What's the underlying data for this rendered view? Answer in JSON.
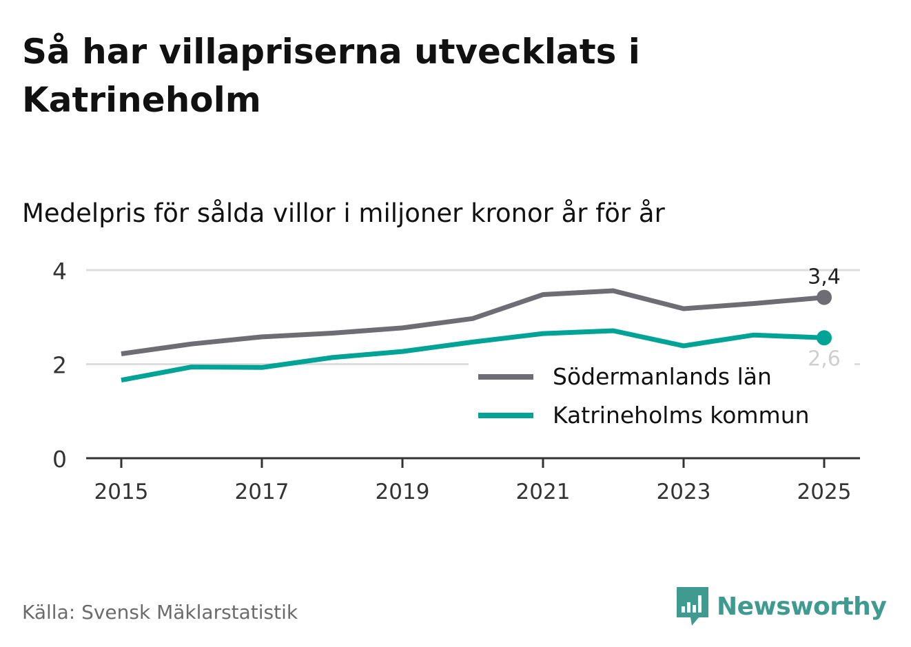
{
  "header": {
    "title": "Så har villapriserna utvecklats i Katrineholm",
    "subtitle": "Medelpris för sålda villor i miljoner kronor år för år"
  },
  "footer": {
    "source": "Källa: Svensk Mäklarstatistik",
    "brand": "Newsworthy"
  },
  "colors": {
    "series_gray": "#6e6d73",
    "series_teal": "#00a396",
    "grid": "#dddddd",
    "axis": "#333333",
    "brand": "#3f9a8f"
  },
  "chart_data": {
    "type": "line",
    "title": "Medelpris för sålda villor i miljoner kronor år för år",
    "xlabel": "",
    "ylabel": "",
    "x": [
      2015,
      2016,
      2017,
      2018,
      2019,
      2020,
      2021,
      2022,
      2023,
      2024,
      2025
    ],
    "xticks": [
      "2015",
      "2017",
      "2019",
      "2021",
      "2023",
      "2025"
    ],
    "yticks": [
      "0",
      "2",
      "4"
    ],
    "ylim": [
      0,
      4
    ],
    "grid": true,
    "legend_position": "bottom-right",
    "series": [
      {
        "name": "Södermanlands län",
        "color": "#6e6d73",
        "values": [
          2.22,
          2.43,
          2.58,
          2.66,
          2.77,
          2.97,
          3.48,
          3.56,
          3.18,
          3.29,
          3.42
        ],
        "end_label": "3,4"
      },
      {
        "name": "Katrineholms kommun",
        "color": "#00a396",
        "values": [
          1.66,
          1.94,
          1.93,
          2.14,
          2.27,
          2.47,
          2.65,
          2.71,
          2.39,
          2.62,
          2.56
        ],
        "end_label": "2,6"
      }
    ]
  }
}
